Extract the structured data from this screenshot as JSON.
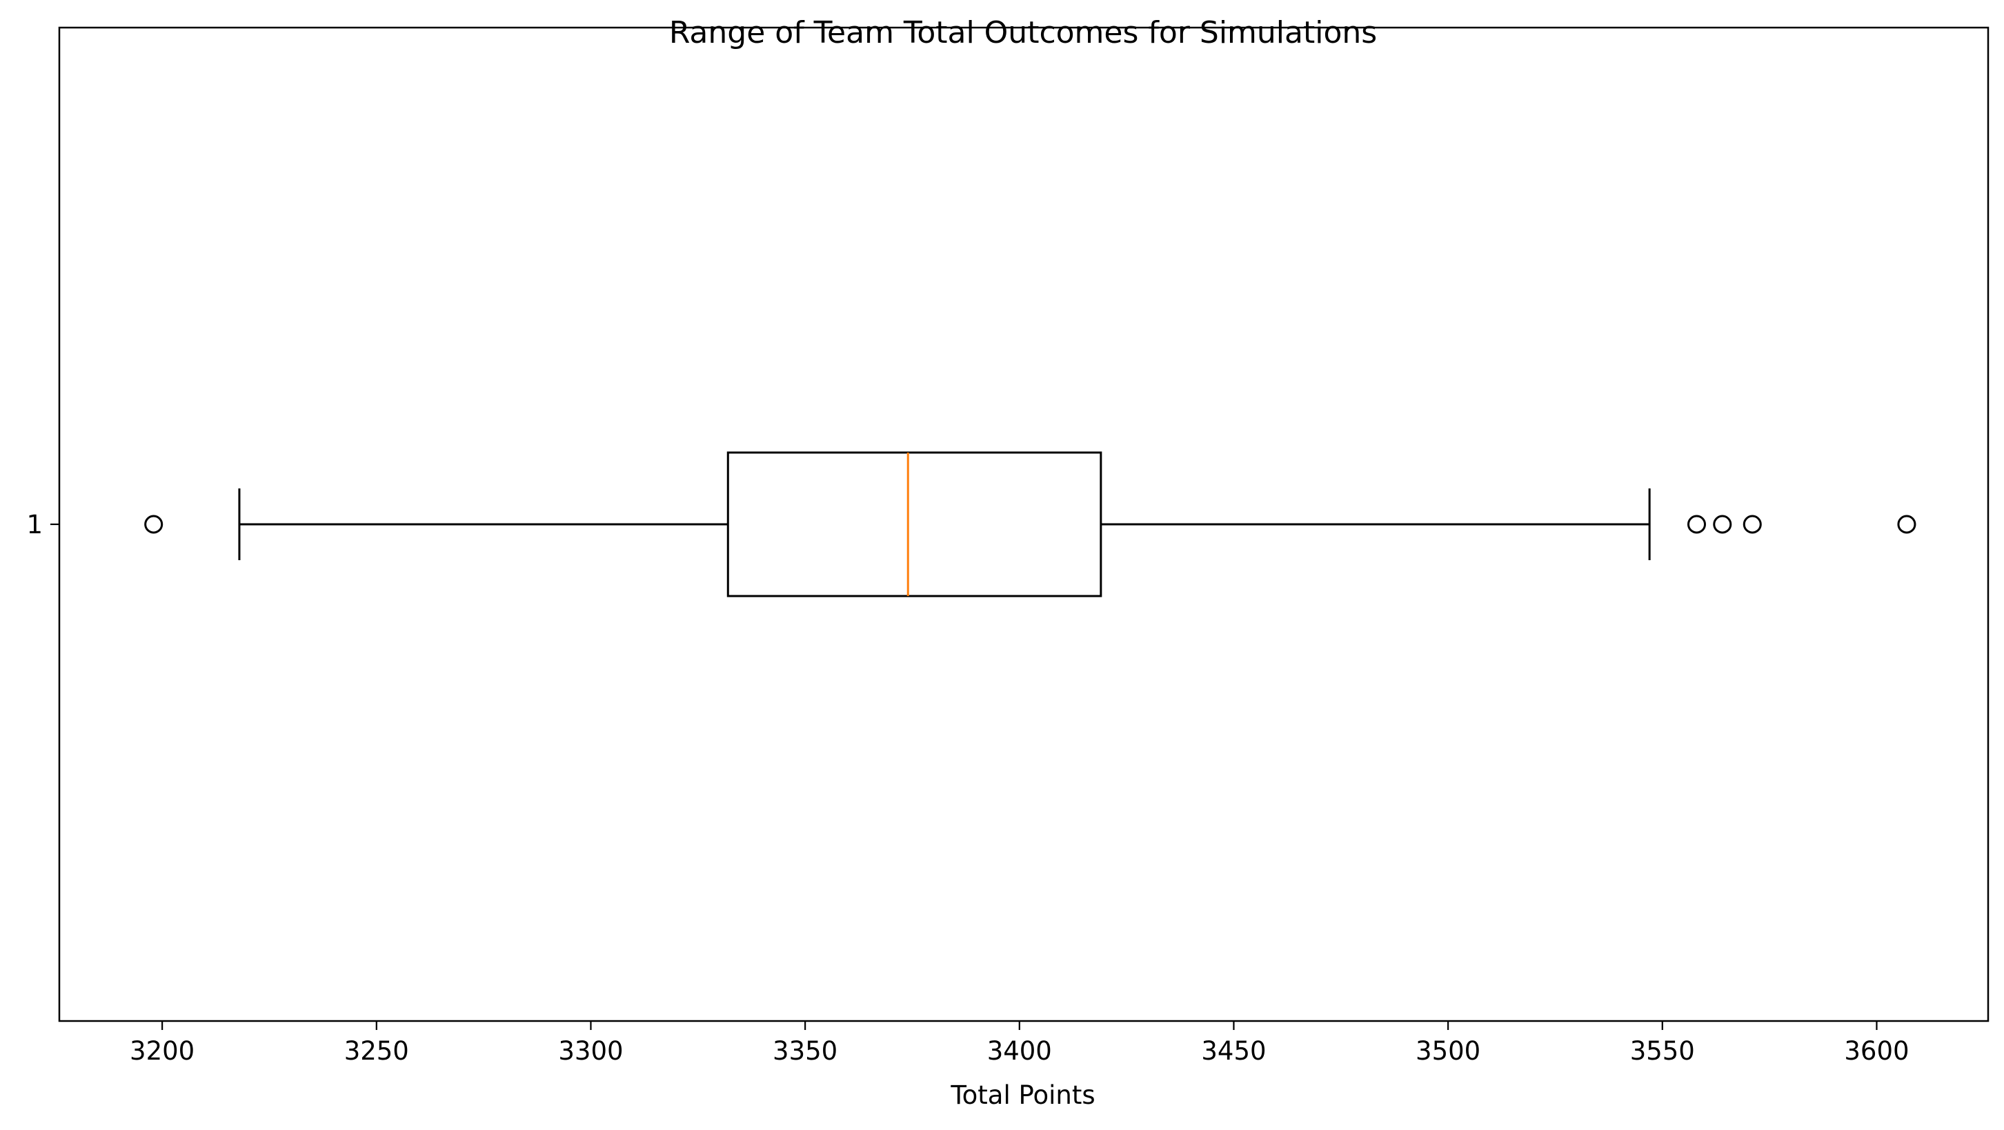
{
  "chart_data": {
    "type": "boxplot",
    "orientation": "horizontal",
    "title": "Range of Team Total Outcomes for Simulations",
    "xlabel": "Total Points",
    "ylabel": "",
    "xlim": [
      3176,
      3626
    ],
    "x_ticks": [
      3200,
      3250,
      3300,
      3350,
      3400,
      3450,
      3500,
      3550,
      3600
    ],
    "y_ticks": [
      "1"
    ],
    "grid": false,
    "boxes": [
      {
        "position": "1",
        "whisker_low": 3218,
        "q1": 3332,
        "median": 3374,
        "q3": 3419,
        "whisker_high": 3547,
        "outliers": [
          3198,
          3558,
          3564,
          3571,
          3607
        ]
      }
    ],
    "colors": {
      "box": "#000000",
      "median": "#ff7f0e",
      "axes": "#000000"
    }
  }
}
